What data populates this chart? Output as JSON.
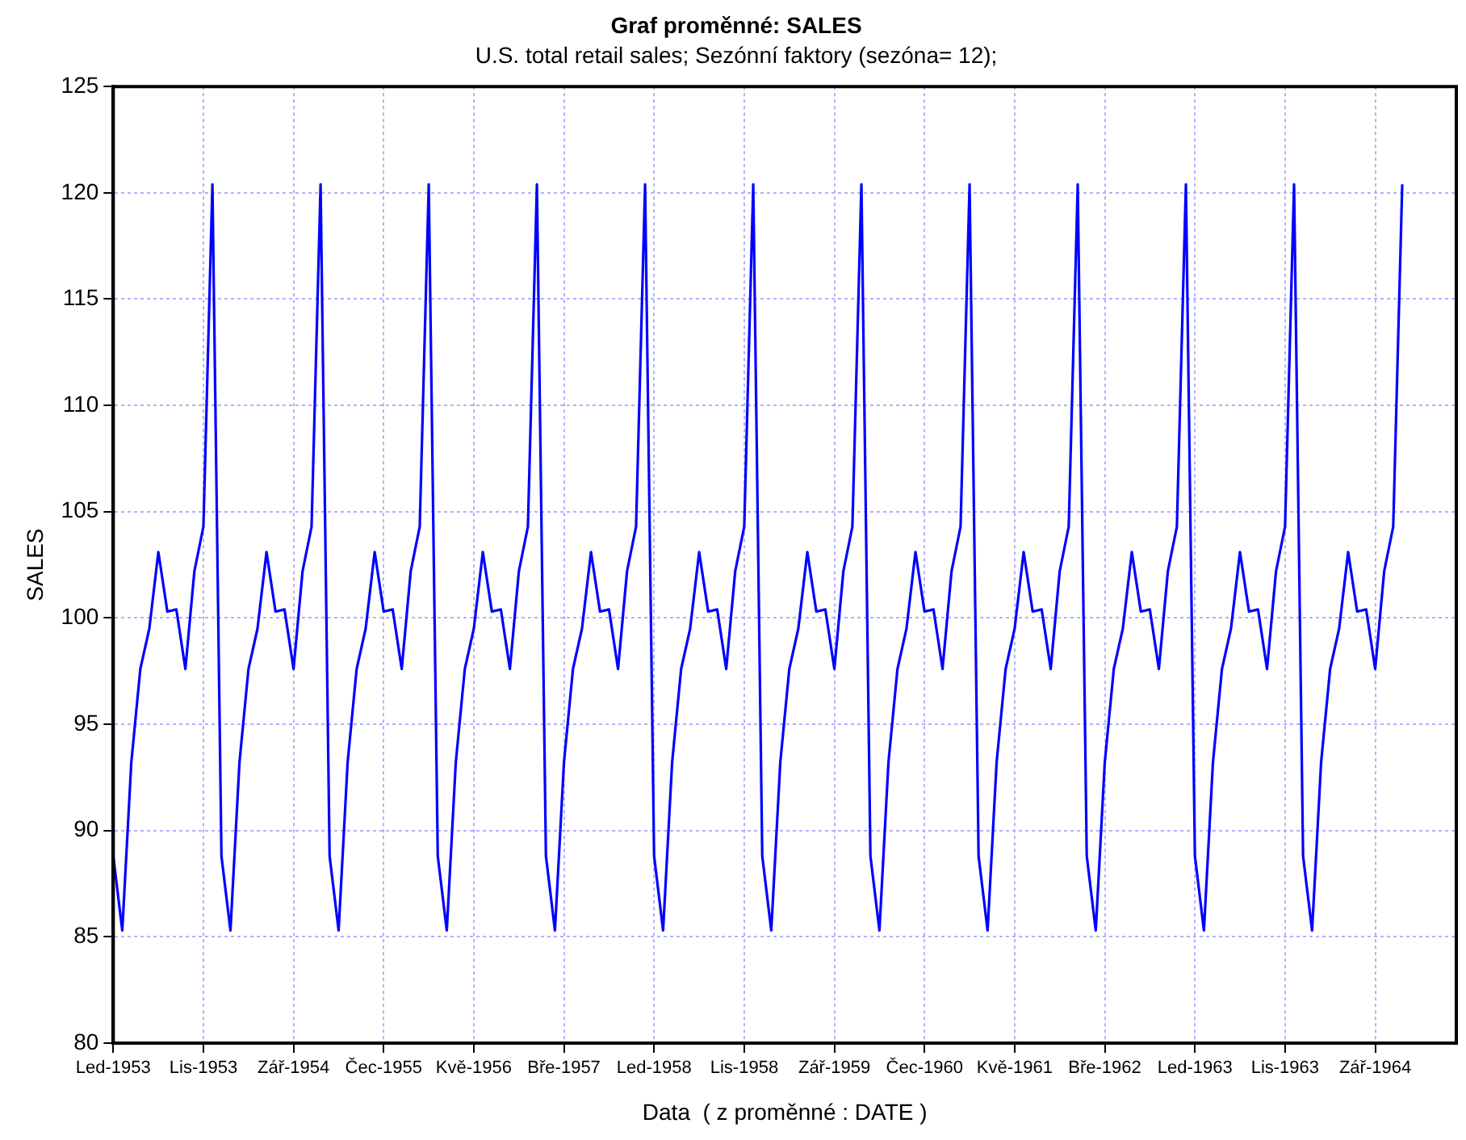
{
  "chart_data": {
    "type": "line",
    "title": "Graf proměnné: SALES",
    "subtitle": "U.S. total retail sales; Sezónní faktory (sezóna= 12);",
    "xlabel": "Data  ( z proměnné : DATE )",
    "ylabel": "SALES",
    "x": [
      "1953-01",
      "1953-02",
      "1953-03",
      "1953-04",
      "1953-05",
      "1953-06",
      "1953-07",
      "1953-08",
      "1953-09",
      "1953-10",
      "1953-11",
      "1953-12",
      "1954-01",
      "1954-02",
      "1954-03",
      "1954-04",
      "1954-05",
      "1954-06",
      "1954-07",
      "1954-08",
      "1954-09",
      "1954-10",
      "1954-11",
      "1954-12",
      "1955-01",
      "1955-02",
      "1955-03",
      "1955-04",
      "1955-05",
      "1955-06",
      "1955-07",
      "1955-08",
      "1955-09",
      "1955-10",
      "1955-11",
      "1955-12",
      "1956-01",
      "1956-02",
      "1956-03",
      "1956-04",
      "1956-05",
      "1956-06",
      "1956-07",
      "1956-08",
      "1956-09",
      "1956-10",
      "1956-11",
      "1956-12",
      "1957-01",
      "1957-02",
      "1957-03",
      "1957-04",
      "1957-05",
      "1957-06",
      "1957-07",
      "1957-08",
      "1957-09",
      "1957-10",
      "1957-11",
      "1957-12",
      "1958-01",
      "1958-02",
      "1958-03",
      "1958-04",
      "1958-05",
      "1958-06",
      "1958-07",
      "1958-08",
      "1958-09",
      "1958-10",
      "1958-11",
      "1958-12",
      "1959-01",
      "1959-02",
      "1959-03",
      "1959-04",
      "1959-05",
      "1959-06",
      "1959-07",
      "1959-08",
      "1959-09",
      "1959-10",
      "1959-11",
      "1959-12",
      "1960-01",
      "1960-02",
      "1960-03",
      "1960-04",
      "1960-05",
      "1960-06",
      "1960-07",
      "1960-08",
      "1960-09",
      "1960-10",
      "1960-11",
      "1960-12",
      "1961-01",
      "1961-02",
      "1961-03",
      "1961-04",
      "1961-05",
      "1961-06",
      "1961-07",
      "1961-08",
      "1961-09",
      "1961-10",
      "1961-11",
      "1961-12",
      "1962-01",
      "1962-02",
      "1962-03",
      "1962-04",
      "1962-05",
      "1962-06",
      "1962-07",
      "1962-08",
      "1962-09",
      "1962-10",
      "1962-11",
      "1962-12",
      "1963-01",
      "1963-02",
      "1963-03",
      "1963-04",
      "1963-05",
      "1963-06",
      "1963-07",
      "1963-08",
      "1963-09",
      "1963-10",
      "1963-11",
      "1963-12",
      "1964-01",
      "1964-02",
      "1964-03",
      "1964-04",
      "1964-05",
      "1964-06",
      "1964-07",
      "1964-08",
      "1964-09",
      "1964-10",
      "1964-11",
      "1964-12"
    ],
    "series": [
      {
        "color": "#0000ff",
        "values": [
          88.8,
          85.3,
          93.2,
          97.6,
          99.5,
          103.1,
          100.3,
          100.4,
          97.6,
          102.2,
          104.3,
          120.4,
          88.8,
          85.3,
          93.2,
          97.6,
          99.5,
          103.1,
          100.3,
          100.4,
          97.6,
          102.2,
          104.3,
          120.4,
          88.8,
          85.3,
          93.2,
          97.6,
          99.5,
          103.1,
          100.3,
          100.4,
          97.6,
          102.2,
          104.3,
          120.4,
          88.8,
          85.3,
          93.2,
          97.6,
          99.5,
          103.1,
          100.3,
          100.4,
          97.6,
          102.2,
          104.3,
          120.4,
          88.8,
          85.3,
          93.2,
          97.6,
          99.5,
          103.1,
          100.3,
          100.4,
          97.6,
          102.2,
          104.3,
          120.4,
          88.8,
          85.3,
          93.2,
          97.6,
          99.5,
          103.1,
          100.3,
          100.4,
          97.6,
          102.2,
          104.3,
          120.4,
          88.8,
          85.3,
          93.2,
          97.6,
          99.5,
          103.1,
          100.3,
          100.4,
          97.6,
          102.2,
          104.3,
          120.4,
          88.8,
          85.3,
          93.2,
          97.6,
          99.5,
          103.1,
          100.3,
          100.4,
          97.6,
          102.2,
          104.3,
          120.4,
          88.8,
          85.3,
          93.2,
          97.6,
          99.5,
          103.1,
          100.3,
          100.4,
          97.6,
          102.2,
          104.3,
          120.4,
          88.8,
          85.3,
          93.2,
          97.6,
          99.5,
          103.1,
          100.3,
          100.4,
          97.6,
          102.2,
          104.3,
          120.4,
          88.8,
          85.3,
          93.2,
          97.6,
          99.5,
          103.1,
          100.3,
          100.4,
          97.6,
          102.2,
          104.3,
          120.4,
          88.8,
          85.3,
          93.2,
          97.6,
          99.5,
          103.1,
          100.3,
          100.4,
          97.6,
          102.2,
          104.3,
          120.4
        ]
      }
    ],
    "xlim": [
      "1953-01",
      "1965-06"
    ],
    "xticks": [
      {
        "value": "1953-01",
        "label": "Led-1953"
      },
      {
        "value": "1953-11",
        "label": "Lis-1953"
      },
      {
        "value": "1954-09",
        "label": "Zář-1954"
      },
      {
        "value": "1955-07",
        "label": "Čec-1955"
      },
      {
        "value": "1956-05",
        "label": "Kvě-1956"
      },
      {
        "value": "1957-03",
        "label": "Bře-1957"
      },
      {
        "value": "1958-01",
        "label": "Led-1958"
      },
      {
        "value": "1958-11",
        "label": "Lis-1958"
      },
      {
        "value": "1959-09",
        "label": "Zář-1959"
      },
      {
        "value": "1960-07",
        "label": "Čec-1960"
      },
      {
        "value": "1961-05",
        "label": "Kvě-1961"
      },
      {
        "value": "1962-03",
        "label": "Bře-1962"
      },
      {
        "value": "1963-01",
        "label": "Led-1963"
      },
      {
        "value": "1963-11",
        "label": "Lis-1963"
      },
      {
        "value": "1964-09",
        "label": "Zář-1964"
      }
    ],
    "ylim": [
      80,
      125
    ],
    "yticks": [
      80,
      85,
      90,
      95,
      100,
      105,
      110,
      115,
      120,
      125
    ],
    "grid": true,
    "legend": false,
    "marker": "none",
    "line_style": "solid"
  }
}
